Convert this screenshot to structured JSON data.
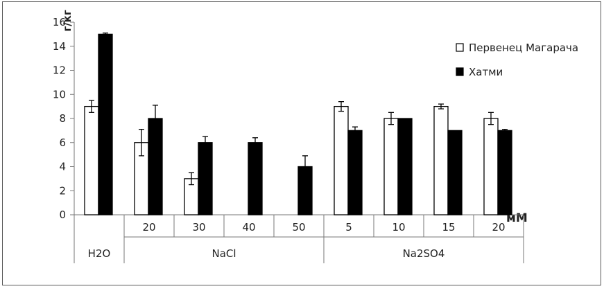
{
  "chart_data": {
    "type": "bar",
    "ylabel": "г/кг",
    "xunit": "мМ",
    "ylim": [
      0,
      16
    ],
    "yticks": [
      0,
      2,
      4,
      6,
      8,
      10,
      12,
      14,
      16
    ],
    "grid": false,
    "legend_position": "top-right",
    "groups": [
      {
        "label": "H2O",
        "subcategories": [
          ""
        ]
      },
      {
        "label": "NaCl",
        "subcategories": [
          "20",
          "30",
          "40",
          "50"
        ]
      },
      {
        "label": "Na2SO4",
        "subcategories": [
          "5",
          "10",
          "15",
          "20"
        ]
      }
    ],
    "series": [
      {
        "name": "Первенец Магарача",
        "color": "#ffffff",
        "values": [
          9,
          6,
          3,
          null,
          null,
          9,
          8,
          9,
          8
        ],
        "errors": [
          0.5,
          1.1,
          0.5,
          null,
          null,
          0.4,
          0.5,
          0.2,
          0.5
        ]
      },
      {
        "name": "Хатми",
        "color": "#000000",
        "values": [
          15,
          8,
          6,
          6,
          4,
          7,
          8,
          7,
          7
        ],
        "errors": [
          0.1,
          1.1,
          0.5,
          0.4,
          0.9,
          0.3,
          0,
          0,
          0.1
        ]
      }
    ]
  }
}
